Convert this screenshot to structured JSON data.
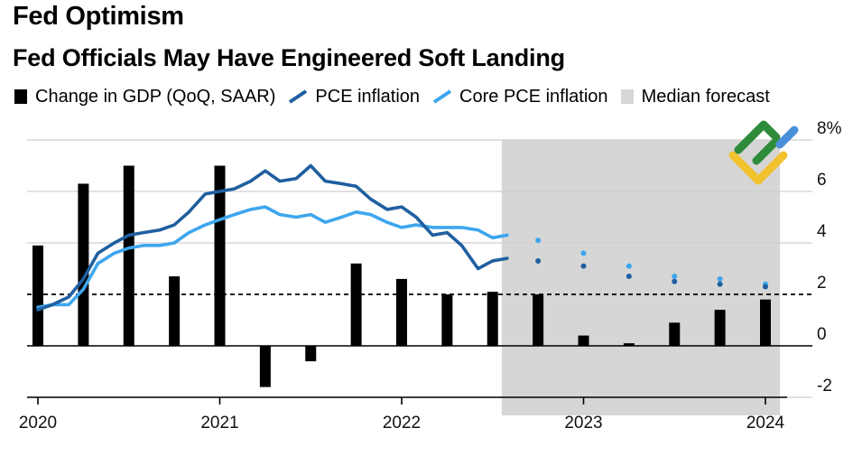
{
  "supertitle": "Fed Optimism",
  "title": "Fed Officials May Have Engineered Soft Landing",
  "legend": [
    {
      "label": "Change in GDP (QoQ, SAAR)",
      "kind": "bar",
      "color": "#000000"
    },
    {
      "label": "PCE inflation",
      "kind": "line",
      "color": "#1f5fa0"
    },
    {
      "label": "Core PCE inflation",
      "kind": "line",
      "color": "#3ea6ee"
    },
    {
      "label": "Median forecast",
      "kind": "shade",
      "color": "#d6d6d6"
    }
  ],
  "chart_data": {
    "type": "bar",
    "y_ticks": [
      "8%",
      "6",
      "4",
      "2",
      "0",
      "-2"
    ],
    "y_tick_values": [
      8,
      6,
      4,
      2,
      0,
      -2
    ],
    "x_ticks": [
      "2020",
      "2021",
      "2022",
      "2023",
      "2024"
    ],
    "x_tick_values": [
      2020,
      2021,
      2022,
      2023,
      2024
    ],
    "ylim": [
      -2,
      8
    ],
    "forecast_start": 2022.55,
    "forecast_end": 2024.08,
    "reference_line": 2.0,
    "gdp": {
      "name": "Change in GDP (QoQ, SAAR)",
      "x": [
        2020.0,
        2020.25,
        2020.5,
        2020.75,
        2021.0,
        2021.25,
        2021.5,
        2021.75,
        2022.0,
        2022.25,
        2022.5,
        2022.75,
        2023.0,
        2023.25,
        2023.5,
        2023.75,
        2024.0
      ],
      "values": [
        3.9,
        6.3,
        7.0,
        2.7,
        7.0,
        -1.6,
        -0.6,
        3.2,
        2.6,
        2.0,
        2.1,
        2.0,
        0.4,
        0.1,
        0.9,
        1.4,
        1.8
      ]
    },
    "pce": {
      "name": "PCE inflation",
      "color": "#1f5fa0",
      "x": [
        2020.0,
        2020.08,
        2020.17,
        2020.25,
        2020.33,
        2020.42,
        2020.5,
        2020.58,
        2020.67,
        2020.75,
        2020.83,
        2020.92,
        2021.0,
        2021.08,
        2021.17,
        2021.25,
        2021.33,
        2021.42,
        2021.5,
        2021.58,
        2021.67,
        2021.75,
        2021.83,
        2021.92,
        2022.0,
        2022.08,
        2022.17,
        2022.25,
        2022.33,
        2022.42,
        2022.5,
        2022.58
      ],
      "values": [
        1.4,
        1.6,
        1.9,
        2.6,
        3.6,
        4.0,
        4.3,
        4.4,
        4.5,
        4.7,
        5.2,
        5.9,
        6.0,
        6.1,
        6.4,
        6.8,
        6.4,
        6.5,
        7.0,
        6.4,
        6.3,
        6.2,
        5.7,
        5.3,
        5.4,
        5.0,
        4.3,
        4.4,
        3.9,
        3.0,
        3.3,
        3.4
      ]
    },
    "core_pce": {
      "name": "Core PCE inflation",
      "color": "#3ea6ee",
      "x": [
        2020.0,
        2020.08,
        2020.17,
        2020.25,
        2020.33,
        2020.42,
        2020.5,
        2020.58,
        2020.67,
        2020.75,
        2020.83,
        2020.92,
        2021.0,
        2021.08,
        2021.17,
        2021.25,
        2021.33,
        2021.42,
        2021.5,
        2021.58,
        2021.67,
        2021.75,
        2021.83,
        2021.92,
        2022.0,
        2022.08,
        2022.17,
        2022.25,
        2022.33,
        2022.42,
        2022.5,
        2022.58
      ],
      "values": [
        1.5,
        1.6,
        1.6,
        2.2,
        3.2,
        3.6,
        3.8,
        3.9,
        3.9,
        4.0,
        4.4,
        4.7,
        4.9,
        5.1,
        5.3,
        5.4,
        5.1,
        5.0,
        5.1,
        4.8,
        5.0,
        5.2,
        5.1,
        4.8,
        4.6,
        4.7,
        4.6,
        4.6,
        4.6,
        4.5,
        4.2,
        4.3
      ]
    },
    "pce_forecast": {
      "x": [
        2022.75,
        2023.0,
        2023.25,
        2023.5,
        2023.75,
        2024.0
      ],
      "values": [
        3.3,
        3.1,
        2.7,
        2.5,
        2.4,
        2.3
      ]
    },
    "core_pce_forecast": {
      "x": [
        2022.75,
        2023.0,
        2023.25,
        2023.5,
        2023.75,
        2024.0
      ],
      "values": [
        4.1,
        3.6,
        3.1,
        2.7,
        2.6,
        2.4
      ]
    },
    "grid": true
  }
}
